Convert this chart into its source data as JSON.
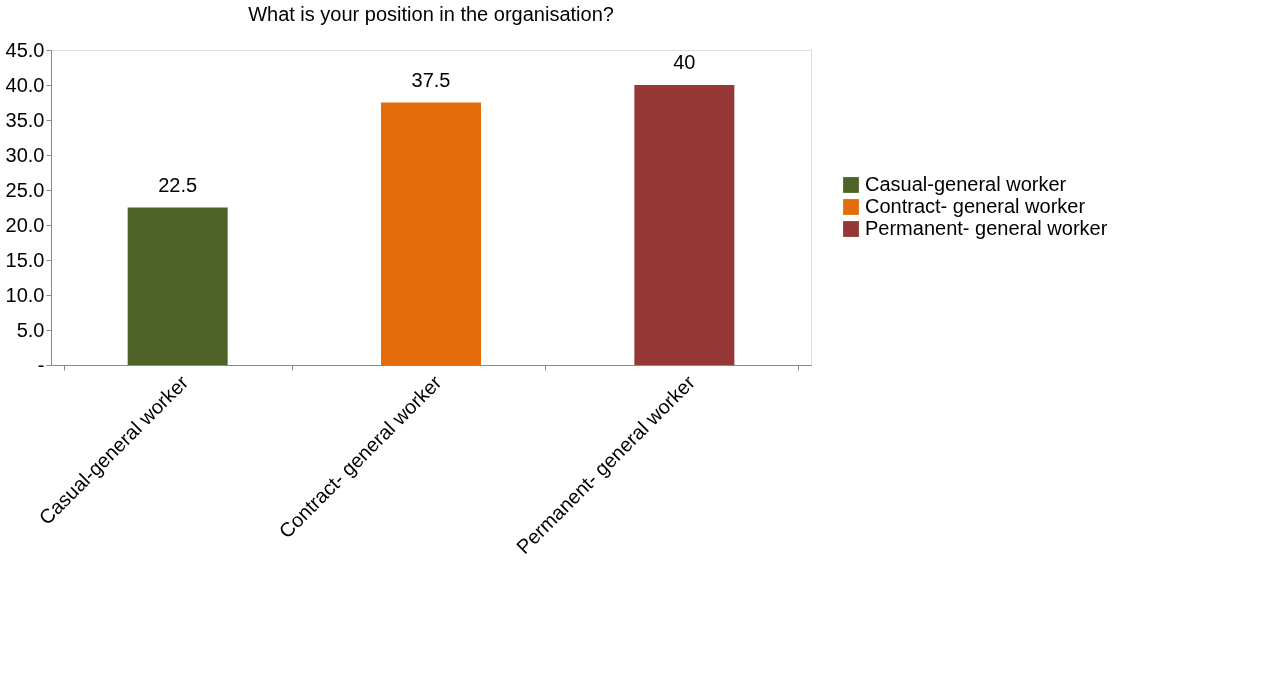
{
  "chart_data": {
    "type": "bar",
    "title": "What is your position in the  organisation?",
    "categories": [
      "Casual-general worker",
      "Contract- general worker",
      "Permanent- general worker"
    ],
    "series": [
      {
        "name": "Casual-general worker",
        "color": "#4f6228",
        "values": [
          22.5,
          null,
          null
        ]
      },
      {
        "name": "Contract- general worker",
        "color": "#e46c0a",
        "values": [
          null,
          37.5,
          null
        ]
      },
      {
        "name": "Permanent- general worker",
        "color": "#953735",
        "values": [
          null,
          null,
          40
        ]
      }
    ],
    "stacked": true,
    "ylim": [
      0,
      45
    ],
    "yticks": [
      {
        "value": 0,
        "label": "-"
      },
      {
        "value": 5,
        "label": "5.0"
      },
      {
        "value": 10,
        "label": "10.0"
      },
      {
        "value": 15,
        "label": "15.0"
      },
      {
        "value": 20,
        "label": "20.0"
      },
      {
        "value": 25,
        "label": "25.0"
      },
      {
        "value": 30,
        "label": "30.0"
      },
      {
        "value": 35,
        "label": "35.0"
      },
      {
        "value": 40,
        "label": "40.0"
      },
      {
        "value": 45,
        "label": "45.0"
      }
    ],
    "data_labels": true,
    "legend": "right",
    "grid": false
  }
}
